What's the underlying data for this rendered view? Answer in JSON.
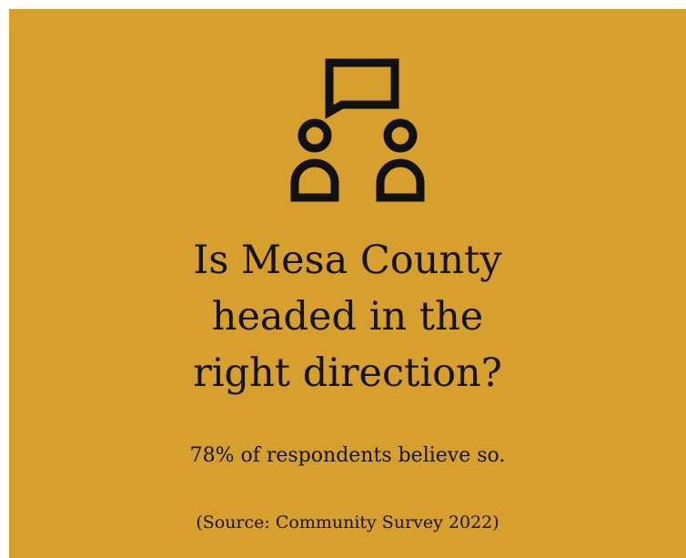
{
  "card": {
    "background_color": "#D79F2E",
    "icon": "discussion-icon",
    "headline_lines": [
      "Is Mesa County",
      "headed in the",
      "right direction?"
    ],
    "stat_text": "78% of respondents believe so.",
    "source_text": "(Source: Community Survey 2022)"
  }
}
